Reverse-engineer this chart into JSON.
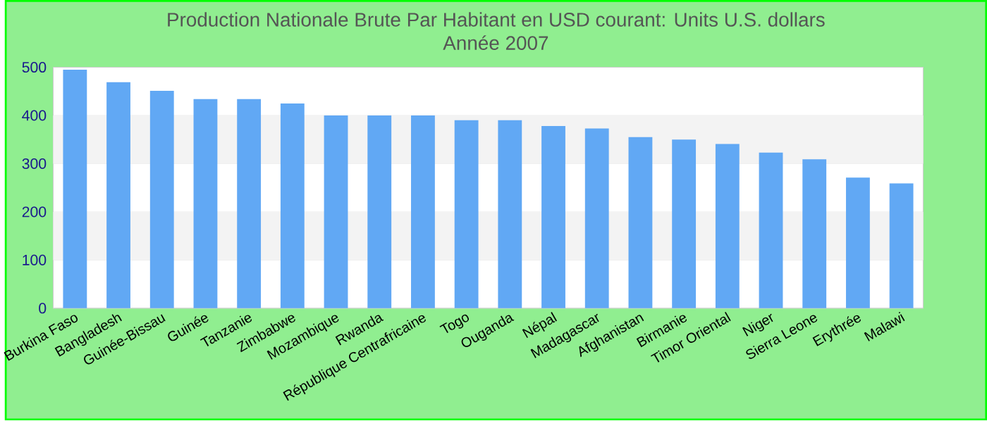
{
  "chart_data": {
    "type": "bar",
    "title": "Production Nationale Brute Par Habitant en USD courant: Units U.S. dollars",
    "subtitle": "Année 2007",
    "categories": [
      "Burkina Faso",
      "Bangladesh",
      "Guinée-Bissau",
      "Guinée",
      "Tanzanie",
      "Zimbabwe",
      "Mozambique",
      "Rwanda",
      "République Centrafricaine",
      "Togo",
      "Ouganda",
      "Népal",
      "Madagascar",
      "Afghanistan",
      "Birmanie",
      "Timor Oriental",
      "Niger",
      "Sierra Leone",
      "Erythrée",
      "Malawi"
    ],
    "values": [
      495,
      469,
      451,
      434,
      434,
      425,
      400,
      400,
      400,
      390,
      390,
      378,
      373,
      355,
      350,
      341,
      323,
      309,
      271,
      259
    ],
    "color": "#61a8f4",
    "ylim": [
      0,
      500
    ],
    "yticks": [
      0,
      100,
      200,
      300,
      400,
      500
    ],
    "grid": "y"
  }
}
